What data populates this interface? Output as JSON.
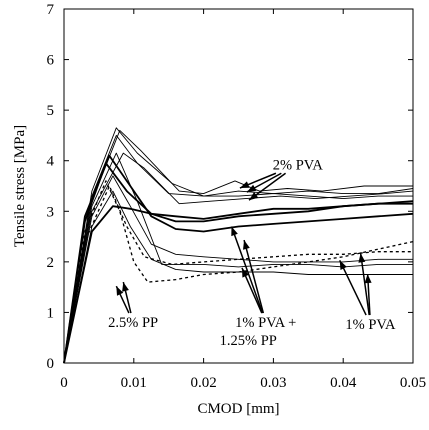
{
  "chart_data": {
    "type": "line",
    "xlabel": "CMOD [mm]",
    "ylabel": "Tensile stress [MPa]",
    "xlim": [
      0,
      0.05
    ],
    "ylim": [
      0,
      7
    ],
    "xticks": [
      "0",
      "0.01",
      "0.02",
      "0.03",
      "0.04",
      "0.05"
    ],
    "yticks": [
      "0",
      "1",
      "2",
      "3",
      "4",
      "5",
      "6",
      "7"
    ],
    "grid": false,
    "legend": "none",
    "annotations": [
      {
        "text": "2% PVA",
        "x": 0.0335,
        "y": 3.93,
        "arrow_targets": [
          [
            0.0252,
            3.46
          ],
          [
            0.0265,
            3.22
          ],
          [
            0.0262,
            3.38
          ]
        ]
      },
      {
        "text": "2.5% PP",
        "x": 0.0099,
        "y": 0.81,
        "arrow_targets": [
          [
            0.0075,
            1.52
          ],
          [
            0.0085,
            1.6
          ]
        ]
      },
      {
        "text": "1% PVA +",
        "x": 0.0289,
        "y": 0.81,
        "arrow_targets": [
          [
            0.024,
            2.7
          ],
          [
            0.0258,
            2.43
          ],
          [
            0.0255,
            1.88
          ]
        ]
      },
      {
        "text": "1.25% PP",
        "x": 0.0264,
        "y": 0.45
      },
      {
        "text": "1% PVA",
        "x": 0.0439,
        "y": 0.77,
        "arrow_targets": [
          [
            0.0395,
            2.03
          ],
          [
            0.0425,
            2.17
          ],
          [
            0.0435,
            1.76
          ]
        ]
      }
    ],
    "series": [
      {
        "group": "2% PVA",
        "style": "solid",
        "width": 0.9,
        "x": [
          0,
          0.004,
          0.0075,
          0.0105,
          0.0155,
          0.02,
          0.025,
          0.03,
          0.035,
          0.04,
          0.045,
          0.05
        ],
        "y": [
          0,
          3.4,
          4.65,
          4.15,
          3.55,
          3.3,
          3.4,
          3.35,
          3.4,
          3.35,
          3.35,
          3.45
        ]
      },
      {
        "group": "2% PVA",
        "style": "solid",
        "width": 0.9,
        "x": [
          0,
          0.004,
          0.008,
          0.011,
          0.0165,
          0.02,
          0.0245,
          0.028,
          0.032,
          0.037,
          0.043,
          0.05
        ],
        "y": [
          0,
          3.2,
          4.6,
          4.2,
          3.4,
          3.35,
          3.6,
          3.4,
          3.45,
          3.4,
          3.5,
          3.5
        ]
      },
      {
        "group": "2% PVA",
        "style": "solid",
        "width": 0.9,
        "x": [
          0,
          0.004,
          0.0085,
          0.0115,
          0.0165,
          0.021,
          0.026,
          0.031,
          0.036,
          0.041,
          0.046,
          0.05
        ],
        "y": [
          0,
          3.0,
          4.15,
          3.85,
          3.15,
          3.2,
          3.25,
          3.3,
          3.25,
          3.3,
          3.35,
          3.4
        ]
      },
      {
        "group": "2% PVA",
        "style": "solid",
        "width": 0.9,
        "x": [
          0,
          0.004,
          0.0075,
          0.0105,
          0.015,
          0.02,
          0.025,
          0.03,
          0.035,
          0.04,
          0.045,
          0.05
        ],
        "y": [
          0,
          3.3,
          4.5,
          3.95,
          3.35,
          3.3,
          3.3,
          3.35,
          3.3,
          3.25,
          3.3,
          3.3
        ]
      },
      {
        "group": "1% PVA + 1.25% PP",
        "style": "solid",
        "width": 1.8,
        "x": [
          0,
          0.003,
          0.0065,
          0.0095,
          0.0125,
          0.016,
          0.02,
          0.025,
          0.03,
          0.035,
          0.04,
          0.045,
          0.05
        ],
        "y": [
          0,
          2.9,
          4.1,
          3.5,
          2.9,
          2.65,
          2.6,
          2.7,
          2.75,
          2.8,
          2.85,
          2.9,
          2.95
        ]
      },
      {
        "group": "1% PVA + 1.25% PP",
        "style": "solid",
        "width": 1.8,
        "x": [
          0,
          0.003,
          0.006,
          0.009,
          0.0125,
          0.016,
          0.02,
          0.025,
          0.03,
          0.035,
          0.04,
          0.045,
          0.05
        ],
        "y": [
          0,
          2.8,
          3.95,
          3.4,
          2.95,
          2.8,
          2.8,
          2.9,
          2.95,
          3.0,
          3.1,
          3.15,
          3.2
        ]
      },
      {
        "group": "1% PVA + 1.25% PP",
        "style": "solid",
        "width": 1.8,
        "x": [
          0,
          0.004,
          0.007,
          0.0095,
          0.0125,
          0.016,
          0.02,
          0.025,
          0.03,
          0.035,
          0.04,
          0.045,
          0.05
        ],
        "y": [
          0,
          2.6,
          3.1,
          3.05,
          2.95,
          2.9,
          2.85,
          2.95,
          3.05,
          3.05,
          3.1,
          3.15,
          3.15
        ]
      },
      {
        "group": "2.5% PP",
        "style": "dashed",
        "width": 1.3,
        "x": [
          0,
          0.003,
          0.006,
          0.008,
          0.01,
          0.012,
          0.016,
          0.02,
          0.025,
          0.03,
          0.035,
          0.04,
          0.045,
          0.05
        ],
        "y": [
          0,
          2.6,
          3.6,
          3.0,
          2.0,
          1.6,
          1.65,
          1.75,
          1.8,
          1.9,
          2.0,
          2.1,
          2.25,
          2.4
        ]
      },
      {
        "group": "2.5% PP",
        "style": "dashed",
        "width": 1.3,
        "x": [
          0,
          0.003,
          0.0065,
          0.009,
          0.0115,
          0.0155,
          0.02,
          0.025,
          0.03,
          0.035,
          0.04,
          0.045,
          0.05
        ],
        "y": [
          0,
          2.4,
          3.5,
          2.7,
          2.1,
          1.95,
          2.0,
          2.05,
          2.1,
          2.15,
          2.15,
          2.2,
          2.2
        ]
      },
      {
        "group": "1% PVA",
        "style": "solid",
        "width": 0.9,
        "x": [
          0,
          0.004,
          0.0075,
          0.0105,
          0.014,
          0.02,
          0.025,
          0.03,
          0.035,
          0.04,
          0.045,
          0.05
        ],
        "y": [
          0,
          3.1,
          4.15,
          3.2,
          1.95,
          1.95,
          1.9,
          1.95,
          1.95,
          1.9,
          1.95,
          1.95
        ]
      },
      {
        "group": "1% PVA",
        "style": "solid",
        "width": 0.9,
        "x": [
          0,
          0.004,
          0.007,
          0.0095,
          0.0125,
          0.016,
          0.02,
          0.025,
          0.03,
          0.035,
          0.04,
          0.045,
          0.05
        ],
        "y": [
          0,
          2.9,
          3.7,
          3.1,
          2.35,
          2.15,
          2.1,
          2.05,
          2.0,
          2.0,
          2.0,
          2.05,
          2.05
        ]
      },
      {
        "group": "1% PVA",
        "style": "solid",
        "width": 0.9,
        "x": [
          0,
          0.004,
          0.007,
          0.0095,
          0.0125,
          0.016,
          0.02,
          0.025,
          0.03,
          0.035,
          0.04,
          0.045,
          0.05
        ],
        "y": [
          0,
          2.7,
          3.4,
          2.7,
          2.05,
          1.85,
          1.8,
          1.8,
          1.8,
          1.75,
          1.75,
          1.75,
          1.75
        ]
      }
    ]
  }
}
